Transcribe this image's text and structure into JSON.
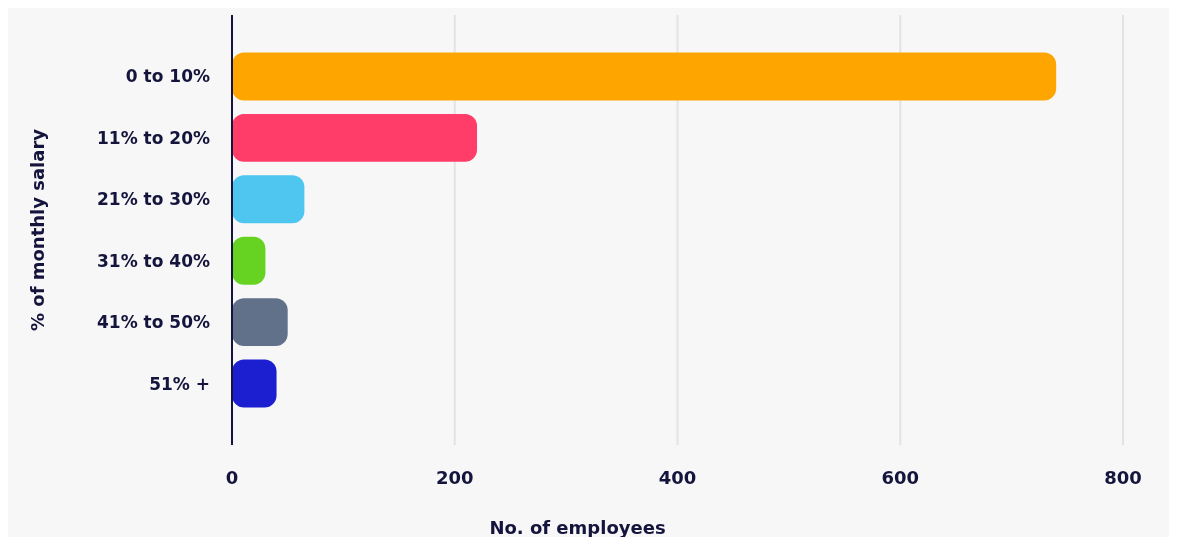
{
  "chart_data": {
    "type": "bar",
    "orientation": "horizontal",
    "xlabel": "No. of employees",
    "ylabel": "% of monthly salary",
    "categories": [
      "0 to 10%",
      "11% to 20%",
      "21% to 30%",
      "31% to 40%",
      "41% to 50%",
      "51% +"
    ],
    "values": [
      740,
      220,
      65,
      30,
      50,
      40
    ],
    "colors": [
      "#ffa500",
      "#ff3d68",
      "#4fc6ef",
      "#66d322",
      "#62718a",
      "#1c1fd0"
    ],
    "xlim": [
      0,
      800
    ],
    "xticks": [
      0,
      200,
      400,
      600,
      800
    ],
    "grid": "x"
  }
}
